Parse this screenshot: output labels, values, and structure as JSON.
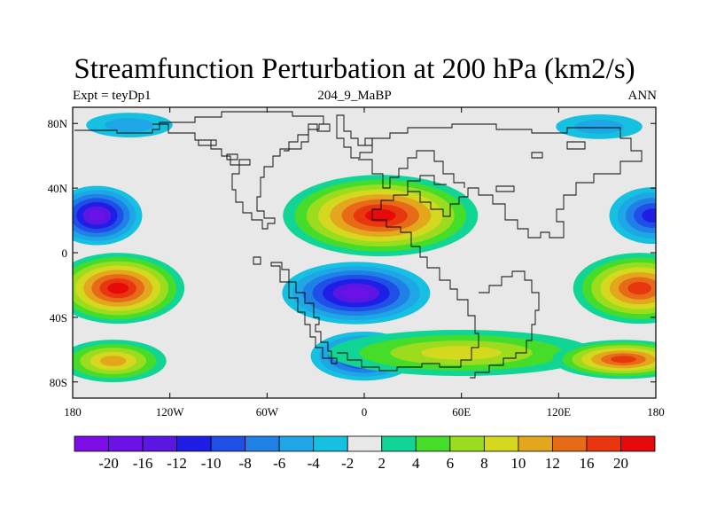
{
  "title": "Streamfunction Perturbation at 200 hPa (km2/s)",
  "subtitle_left": "Expt = teyDp1",
  "subtitle_center": "204_9_MaBP",
  "subtitle_right": "ANN",
  "map": {
    "lon_range": [
      -180,
      180
    ],
    "lat_range": [
      -90,
      90
    ],
    "x_ticks": [
      {
        "value": -180,
        "label": "180"
      },
      {
        "value": -120,
        "label": "120W"
      },
      {
        "value": -60,
        "label": "60W"
      },
      {
        "value": 0,
        "label": "0"
      },
      {
        "value": 60,
        "label": "60E"
      },
      {
        "value": 120,
        "label": "120E"
      },
      {
        "value": 180,
        "label": "180"
      }
    ],
    "y_ticks": [
      {
        "value": 80,
        "label": "80N"
      },
      {
        "value": 40,
        "label": "40N"
      },
      {
        "value": 0,
        "label": "0"
      },
      {
        "value": -40,
        "label": "40S"
      },
      {
        "value": -80,
        "label": "80S"
      }
    ]
  },
  "chart_data": {
    "type": "heatmap",
    "title": "Streamfunction Perturbation at 200 hPa (km2/s)",
    "xlabel": "",
    "ylabel": "",
    "xlim": [
      -180,
      180
    ],
    "ylim": [
      -90,
      90
    ],
    "units": "km2/s",
    "levels": [
      -20,
      -16,
      -12,
      -10,
      -8,
      -6,
      -4,
      -2,
      2,
      4,
      6,
      8,
      10,
      12,
      16,
      20
    ],
    "level_labels": [
      "-20",
      "-16",
      "-12",
      "-10",
      "-8",
      "-6",
      "-4",
      "-2",
      "2",
      "4",
      "6",
      "8",
      "10",
      "12",
      "16",
      "20"
    ],
    "colors": [
      "#7d0ce6",
      "#6c11e8",
      "#5b16e2",
      "#1e1ee6",
      "#1f4fe6",
      "#1f80e6",
      "#1ea6e6",
      "#16c0e0",
      "#e8e8e8",
      "#11d595",
      "#45dd2a",
      "#9bdd1e",
      "#d4d81e",
      "#e3a61c",
      "#e66a18",
      "#e8360f",
      "#e60a0a"
    ],
    "features": [
      {
        "name": "Pacific NH low",
        "lon": -165,
        "lat": 23,
        "value": -20
      },
      {
        "name": "Pacific NH low (east edge)",
        "lon": 178,
        "lat": 23,
        "value": -12
      },
      {
        "name": "Pacific SH high",
        "lon": -152,
        "lat": -22,
        "value": 20
      },
      {
        "name": "Pacific SH high (east edge)",
        "lon": 170,
        "lat": -22,
        "value": 16
      },
      {
        "name": "Atlantic SH low",
        "lon": -5,
        "lat": -25,
        "value": -20
      },
      {
        "name": "Southern Ocean low",
        "lon": 0,
        "lat": -64,
        "value": -16
      },
      {
        "name": "Asian NH high",
        "lon": 10,
        "lat": 23,
        "value": 20
      },
      {
        "name": "Arctic Atlantic low",
        "lon": -145,
        "lat": 79,
        "value": -6
      },
      {
        "name": "Arctic Asia low",
        "lon": 145,
        "lat": 78,
        "value": -6
      },
      {
        "name": "Indian SH high",
        "lon": 60,
        "lat": -62,
        "value": 8
      },
      {
        "name": "Pacific SH subpolar high",
        "lon": 160,
        "lat": -66,
        "value": 16
      },
      {
        "name": "Pacific SH subpolar high (west edge)",
        "lon": -155,
        "lat": -67,
        "value": 10
      }
    ]
  }
}
